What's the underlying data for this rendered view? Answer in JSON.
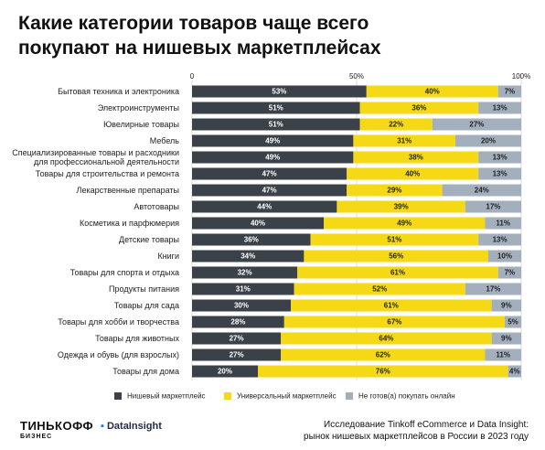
{
  "chart_data": {
    "type": "stacked_barh",
    "title": "Какие категории товаров чаще всего покупают на нишевых маркетплейсах",
    "categories": [
      "Бытовая техника и электроника",
      "Электроинструменты",
      "Ювелирные товары",
      "Мебель",
      "Специализированные товары и расходники для профессиональной деятельности",
      "Товары для строительства и ремонта",
      "Лекарственные препараты",
      "Автотовары",
      "Косметика и парфюмерия",
      "Детские товары",
      "Книги",
      "Товары для спорта и отдыха",
      "Продукты питания",
      "Товары для сада",
      "Товары для хобби и творчества",
      "Товары для животных",
      "Одежда и обувь (для взрослых)",
      "Товары для дома"
    ],
    "series": [
      {
        "name": "Нишевый маркетплейс",
        "color": "#3b4149",
        "label_color": "#ffffff",
        "values": [
          53,
          51,
          51,
          49,
          49,
          47,
          47,
          44,
          40,
          36,
          34,
          32,
          31,
          30,
          28,
          27,
          27,
          20
        ],
        "value_labels": [
          "53%",
          "51%",
          "51%",
          "49%",
          "49%",
          "47%",
          "47%",
          "44%",
          "40%",
          "36%",
          "34%",
          "32%",
          "31%",
          "30%",
          "28%",
          "27%",
          "27%",
          "20%"
        ]
      },
      {
        "name": "Универсальный маркетплейс",
        "color": "#f6d916",
        "label_color": "#222222",
        "values": [
          40,
          36,
          22,
          31,
          38,
          40,
          29,
          39,
          49,
          51,
          56,
          61,
          52,
          61,
          67,
          64,
          62,
          76
        ],
        "value_labels": [
          "40%",
          "36%",
          "22%",
          "31%",
          "38%",
          "40%",
          "29%",
          "39%",
          "49%",
          "51%",
          "56%",
          "61%",
          "52%",
          "61%",
          "67%",
          "64%",
          "62%",
          "76%"
        ]
      },
      {
        "name": "Не готов(а) покупать онлайн",
        "color": "#a3afbd",
        "label_color": "#222222",
        "values": [
          7,
          13,
          27,
          20,
          13,
          13,
          24,
          17,
          11,
          13,
          10,
          7,
          17,
          9,
          5,
          9,
          11,
          4
        ],
        "value_labels": [
          "7%",
          "13%",
          "27%",
          "20%",
          "13%",
          "13%",
          "24%",
          "17%",
          "11%",
          "13%",
          "10%",
          "7%",
          "17%",
          "9%",
          "5%",
          "9%",
          "11%",
          "4%"
        ]
      }
    ],
    "xlim": [
      0,
      100
    ],
    "xticks": [
      0,
      {
        "value": 50,
        "label": "50%"
      },
      {
        "value": 100,
        "label": "100%"
      }
    ],
    "grid": true
  },
  "footer": {
    "brand_1": "ТИНЬКОФФ",
    "brand_1_sub": "БИЗНЕС",
    "brand_2": "DataInsight",
    "source": [
      "Исследование Tinkoff eCommerce и Data Insight:",
      "рынок нишевых маркетплейсов в России в 2023 году"
    ]
  }
}
